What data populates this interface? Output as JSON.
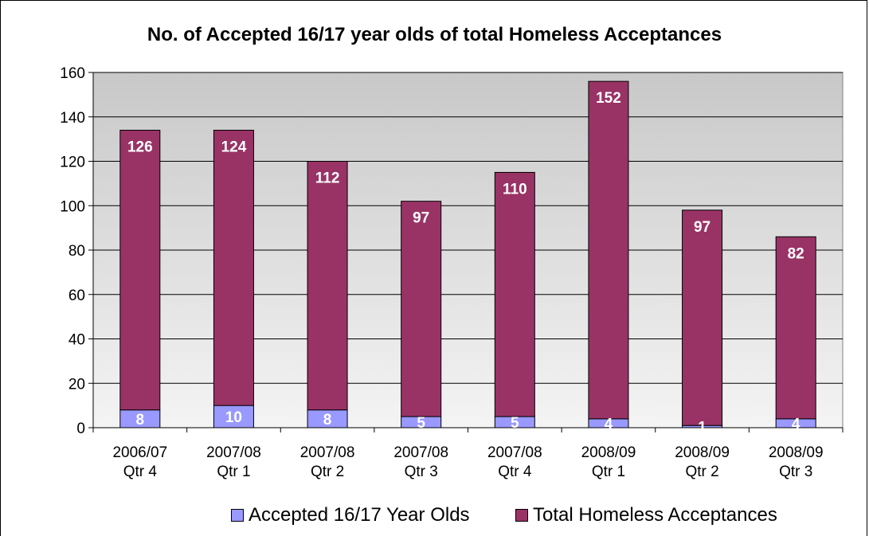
{
  "chart_data": {
    "type": "bar",
    "stacked": true,
    "title": "No. of Accepted 16/17 year olds of total Homeless Acceptances",
    "categories": [
      "2006/07\nQtr 4",
      "2007/08\nQtr 1",
      "2007/08\nQtr 2",
      "2007/08\nQtr 3",
      "2007/08\nQtr 4",
      "2008/09\nQtr 1",
      "2008/09\nQtr 2",
      "2008/09\nQtr 3"
    ],
    "series": [
      {
        "name": "Accepted 16/17 Year Olds",
        "color": "#9999ff",
        "values": [
          8,
          10,
          8,
          5,
          5,
          4,
          1,
          4
        ]
      },
      {
        "name": "Total Homeless Acceptances",
        "color": "#993366",
        "values": [
          126,
          124,
          112,
          97,
          110,
          152,
          97,
          82
        ]
      }
    ],
    "ylim": [
      0,
      160
    ],
    "yticks": [
      0,
      20,
      40,
      60,
      80,
      100,
      120,
      140,
      160
    ],
    "grid": true,
    "legend": "bottom"
  }
}
